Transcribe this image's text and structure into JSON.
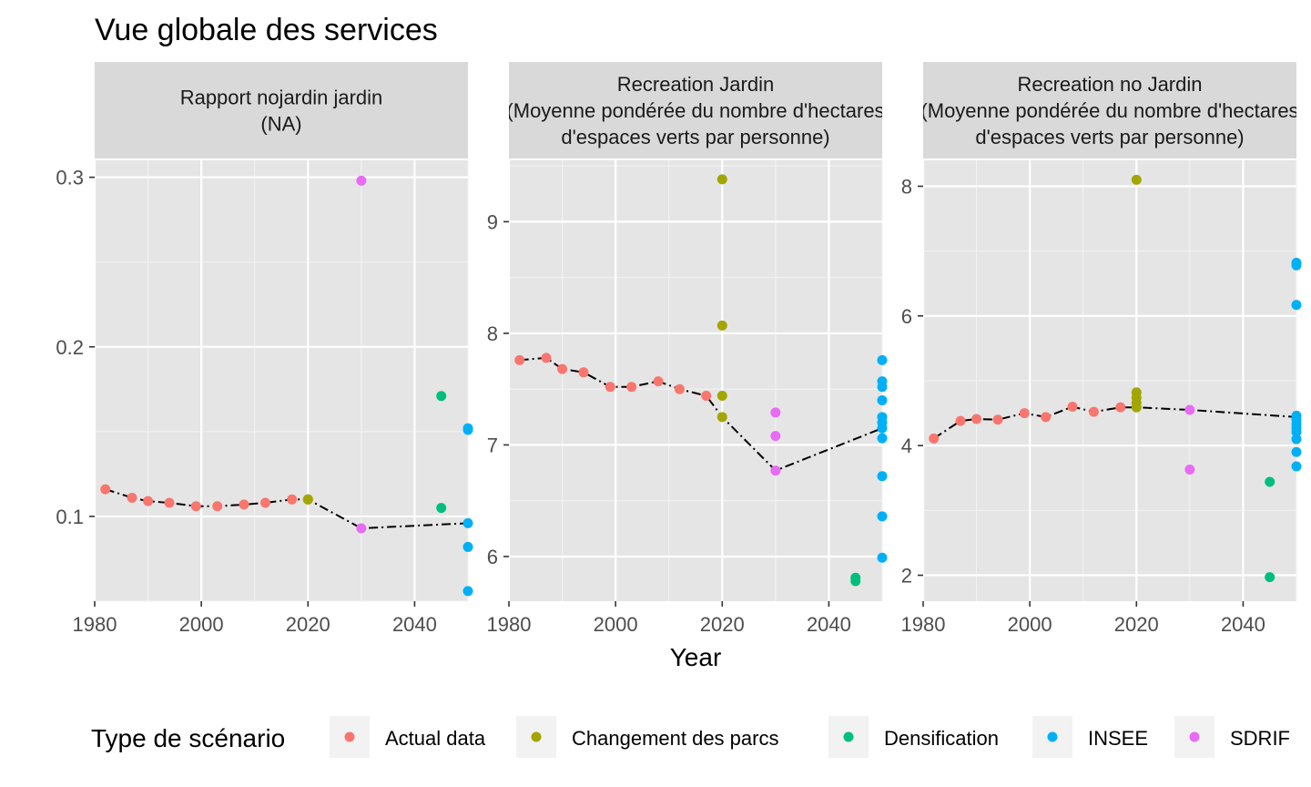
{
  "chart_data": {
    "type": "scatter",
    "title": "Vue globale des services",
    "xlabel": "Year",
    "ylabel": "",
    "legend": {
      "title": "Type de scénario",
      "placement": "bottom",
      "entries": [
        {
          "name": "Actual data",
          "color": "#F8766D"
        },
        {
          "name": "Changement des parcs",
          "color": "#A3A500"
        },
        {
          "name": "Densification",
          "color": "#00BF7D"
        },
        {
          "name": "INSEE",
          "color": "#00B0F6"
        },
        {
          "name": "SDRIF",
          "color": "#E76BF3"
        }
      ]
    },
    "facets": [
      {
        "strip": [
          "Rapport nojardin jardin",
          "(NA)"
        ],
        "xlim": [
          1980,
          2050
        ],
        "ylim": [
          0.05,
          0.31
        ],
        "x_ticks": [
          1980,
          2000,
          2020,
          2040
        ],
        "y_ticks": [
          0.1,
          0.2,
          0.3
        ],
        "y_tick_labels": [
          "0.1",
          "0.2",
          "0.3"
        ],
        "trend": [
          [
            1982,
            0.116
          ],
          [
            1987,
            0.111
          ],
          [
            1990,
            0.109
          ],
          [
            1994,
            0.108
          ],
          [
            1999,
            0.106
          ],
          [
            2003,
            0.106
          ],
          [
            2008,
            0.107
          ],
          [
            2012,
            0.108
          ],
          [
            2017,
            0.11
          ],
          [
            2020,
            0.11
          ],
          [
            2030,
            0.093
          ],
          [
            2050,
            0.096
          ]
        ],
        "series": [
          {
            "name": "Actual data",
            "points": [
              [
                1982,
                0.116
              ],
              [
                1987,
                0.111
              ],
              [
                1990,
                0.109
              ],
              [
                1994,
                0.108
              ],
              [
                1999,
                0.106
              ],
              [
                2003,
                0.106
              ],
              [
                2008,
                0.107
              ],
              [
                2012,
                0.108
              ],
              [
                2017,
                0.11
              ]
            ]
          },
          {
            "name": "Changement des parcs",
            "points": [
              [
                2020,
                0.11
              ],
              [
                2020,
                0.11
              ]
            ]
          },
          {
            "name": "Densification",
            "points": [
              [
                2045,
                0.171
              ],
              [
                2045,
                0.105
              ]
            ]
          },
          {
            "name": "INSEE",
            "points": [
              [
                2050,
                0.152
              ],
              [
                2050,
                0.151
              ],
              [
                2050,
                0.096
              ],
              [
                2050,
                0.082
              ],
              [
                2050,
                0.056
              ]
            ]
          },
          {
            "name": "SDRIF",
            "points": [
              [
                2030,
                0.298
              ],
              [
                2030,
                0.093
              ]
            ]
          }
        ]
      },
      {
        "strip": [
          "Recreation Jardin",
          "(Moyenne pondérée du nombre d'hectares",
          "d'espaces verts par personne)"
        ],
        "xlim": [
          1980,
          2050
        ],
        "ylim": [
          5.6,
          9.55
        ],
        "x_ticks": [
          1980,
          2000,
          2020,
          2040
        ],
        "y_ticks": [
          6,
          7,
          8,
          9
        ],
        "y_tick_labels": [
          "6",
          "7",
          "8",
          "9"
        ],
        "trend": [
          [
            1982,
            7.76
          ],
          [
            1987,
            7.78
          ],
          [
            1990,
            7.68
          ],
          [
            1994,
            7.65
          ],
          [
            1999,
            7.52
          ],
          [
            2003,
            7.52
          ],
          [
            2008,
            7.57
          ],
          [
            2012,
            7.5
          ],
          [
            2017,
            7.44
          ],
          [
            2020,
            7.25
          ],
          [
            2030,
            6.77
          ],
          [
            2050,
            7.15
          ]
        ],
        "series": [
          {
            "name": "Actual data",
            "points": [
              [
                1982,
                7.76
              ],
              [
                1987,
                7.78
              ],
              [
                1990,
                7.68
              ],
              [
                1994,
                7.65
              ],
              [
                1999,
                7.52
              ],
              [
                2003,
                7.52
              ],
              [
                2008,
                7.57
              ],
              [
                2012,
                7.5
              ],
              [
                2017,
                7.44
              ]
            ]
          },
          {
            "name": "Changement des parcs",
            "points": [
              [
                2020,
                9.38
              ],
              [
                2020,
                8.07
              ],
              [
                2020,
                7.44
              ],
              [
                2020,
                7.25
              ]
            ]
          },
          {
            "name": "Densification",
            "points": [
              [
                2045,
                5.81
              ],
              [
                2045,
                5.78
              ]
            ]
          },
          {
            "name": "INSEE",
            "points": [
              [
                2050,
                7.76
              ],
              [
                2050,
                7.57
              ],
              [
                2050,
                7.52
              ],
              [
                2050,
                7.4
              ],
              [
                2050,
                7.25
              ],
              [
                2050,
                7.2
              ],
              [
                2050,
                7.15
              ],
              [
                2050,
                7.06
              ],
              [
                2050,
                6.72
              ],
              [
                2050,
                6.36
              ],
              [
                2050,
                5.99
              ]
            ]
          },
          {
            "name": "SDRIF",
            "points": [
              [
                2030,
                7.29
              ],
              [
                2030,
                7.08
              ],
              [
                2030,
                6.77
              ]
            ]
          }
        ]
      },
      {
        "strip": [
          "Recreation no Jardin",
          "(Moyenne pondérée du nombre d'hectares",
          "d'espaces verts par personne)"
        ],
        "xlim": [
          1980,
          2050
        ],
        "ylim": [
          1.6,
          8.4
        ],
        "x_ticks": [
          1980,
          2000,
          2020,
          2040
        ],
        "y_ticks": [
          2,
          4,
          6,
          8
        ],
        "y_tick_labels": [
          "2",
          "4",
          "6",
          "8"
        ],
        "trend": [
          [
            1982,
            4.11
          ],
          [
            1987,
            4.38
          ],
          [
            1990,
            4.41
          ],
          [
            1994,
            4.4
          ],
          [
            1999,
            4.5
          ],
          [
            2003,
            4.44
          ],
          [
            2008,
            4.6
          ],
          [
            2012,
            4.52
          ],
          [
            2017,
            4.59
          ],
          [
            2020,
            4.59
          ],
          [
            2030,
            4.55
          ],
          [
            2050,
            4.44
          ]
        ],
        "series": [
          {
            "name": "Actual data",
            "points": [
              [
                1982,
                4.11
              ],
              [
                1987,
                4.38
              ],
              [
                1990,
                4.41
              ],
              [
                1994,
                4.4
              ],
              [
                1999,
                4.5
              ],
              [
                2003,
                4.44
              ],
              [
                2008,
                4.6
              ],
              [
                2012,
                4.52
              ],
              [
                2017,
                4.59
              ]
            ]
          },
          {
            "name": "Changement des parcs",
            "points": [
              [
                2020,
                8.1
              ],
              [
                2020,
                4.82
              ],
              [
                2020,
                4.74
              ],
              [
                2020,
                4.66
              ],
              [
                2020,
                4.59
              ]
            ]
          },
          {
            "name": "Densification",
            "points": [
              [
                2045,
                3.44
              ],
              [
                2045,
                1.97
              ]
            ]
          },
          {
            "name": "INSEE",
            "points": [
              [
                2050,
                6.82
              ],
              [
                2050,
                6.78
              ],
              [
                2050,
                6.17
              ],
              [
                2050,
                4.46
              ],
              [
                2050,
                4.4
              ],
              [
                2050,
                4.33
              ],
              [
                2050,
                4.27
              ],
              [
                2050,
                4.21
              ],
              [
                2050,
                4.1
              ],
              [
                2050,
                3.9
              ],
              [
                2050,
                3.68
              ]
            ]
          },
          {
            "name": "SDRIF",
            "points": [
              [
                2030,
                4.55
              ],
              [
                2030,
                3.63
              ]
            ]
          }
        ]
      }
    ]
  }
}
